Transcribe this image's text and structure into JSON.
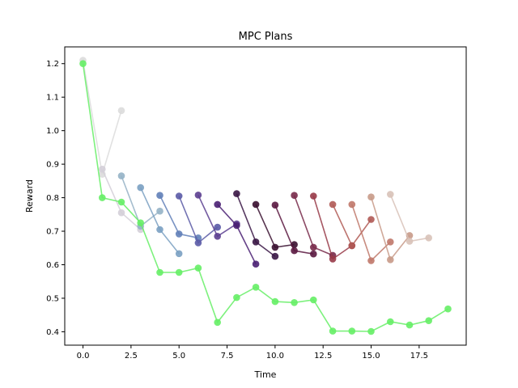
{
  "chart_data": {
    "type": "line",
    "title": "MPC Plans",
    "xlabel": "Time",
    "ylabel": "Reward",
    "xlim": [
      -0.95,
      19.95
    ],
    "ylim": [
      0.36,
      1.25
    ],
    "xticks": [
      0.0,
      2.5,
      5.0,
      7.5,
      10.0,
      12.5,
      15.0,
      17.5
    ],
    "yticks": [
      0.4,
      0.5,
      0.6,
      0.7,
      0.8,
      0.9,
      1.0,
      1.1,
      1.2
    ],
    "grid": false,
    "series": [
      {
        "color": "#dcdcdc",
        "points": [
          [
            0,
            1.21
          ],
          [
            1,
            0.87
          ],
          [
            2,
            1.06
          ]
        ]
      },
      {
        "color": "#d4cfd8",
        "points": [
          [
            1,
            0.885
          ],
          [
            2,
            0.755
          ],
          [
            3,
            0.705
          ]
        ]
      },
      {
        "color": "#95b2c6",
        "points": [
          [
            2,
            0.865
          ],
          [
            3,
            0.715
          ],
          [
            4,
            0.76
          ]
        ]
      },
      {
        "color": "#7aa0c2",
        "points": [
          [
            3,
            0.83
          ],
          [
            4,
            0.705
          ],
          [
            5,
            0.633
          ]
        ]
      },
      {
        "color": "#6180b8",
        "points": [
          [
            4,
            0.807
          ],
          [
            5,
            0.692
          ],
          [
            6,
            0.68
          ]
        ]
      },
      {
        "color": "#5a5aa6",
        "points": [
          [
            5,
            0.805
          ],
          [
            6,
            0.665
          ],
          [
            7,
            0.712
          ]
        ]
      },
      {
        "color": "#5c3f90",
        "points": [
          [
            6,
            0.808
          ],
          [
            7,
            0.685
          ],
          [
            8,
            0.722
          ]
        ]
      },
      {
        "color": "#4a2073",
        "points": [
          [
            7,
            0.78
          ],
          [
            8,
            0.717
          ],
          [
            9,
            0.602
          ]
        ]
      },
      {
        "color": "#3a1645",
        "points": [
          [
            8,
            0.812
          ],
          [
            9,
            0.668
          ],
          [
            10,
            0.625
          ]
        ]
      },
      {
        "color": "#3a1030",
        "points": [
          [
            9,
            0.78
          ],
          [
            10,
            0.652
          ],
          [
            11,
            0.66
          ]
        ]
      },
      {
        "color": "#5a1840",
        "points": [
          [
            10,
            0.778
          ],
          [
            11,
            0.642
          ],
          [
            12,
            0.632
          ]
        ]
      },
      {
        "color": "#782a4a",
        "points": [
          [
            11,
            0.807
          ],
          [
            12,
            0.652
          ],
          [
            13,
            0.628
          ]
        ]
      },
      {
        "color": "#983a48",
        "points": [
          [
            12,
            0.805
          ],
          [
            13,
            0.617
          ],
          [
            14,
            0.657
          ]
        ]
      },
      {
        "color": "#b05a55",
        "points": [
          [
            13,
            0.78
          ],
          [
            14,
            0.657
          ],
          [
            15,
            0.735
          ]
        ]
      },
      {
        "color": "#c0786a",
        "points": [
          [
            14,
            0.78
          ],
          [
            15,
            0.612
          ],
          [
            16,
            0.668
          ]
        ]
      },
      {
        "color": "#c89a88",
        "points": [
          [
            15,
            0.802
          ],
          [
            16,
            0.615
          ],
          [
            17,
            0.687
          ]
        ]
      },
      {
        "color": "#d8c2b8",
        "points": [
          [
            16,
            0.81
          ],
          [
            17,
            0.67
          ],
          [
            18,
            0.68
          ]
        ]
      },
      {
        "color": "#66ee66",
        "points": [
          [
            0,
            1.2
          ],
          [
            1,
            0.8
          ],
          [
            2,
            0.787
          ],
          [
            3,
            0.725
          ],
          [
            4,
            0.577
          ],
          [
            5,
            0.577
          ],
          [
            6,
            0.59
          ],
          [
            7,
            0.428
          ],
          [
            8,
            0.502
          ],
          [
            9,
            0.533
          ],
          [
            10,
            0.49
          ],
          [
            11,
            0.487
          ],
          [
            12,
            0.495
          ],
          [
            13,
            0.402
          ],
          [
            14,
            0.402
          ],
          [
            15,
            0.401
          ],
          [
            16,
            0.43
          ],
          [
            17,
            0.42
          ],
          [
            18,
            0.433
          ],
          [
            19,
            0.468
          ]
        ]
      }
    ]
  }
}
